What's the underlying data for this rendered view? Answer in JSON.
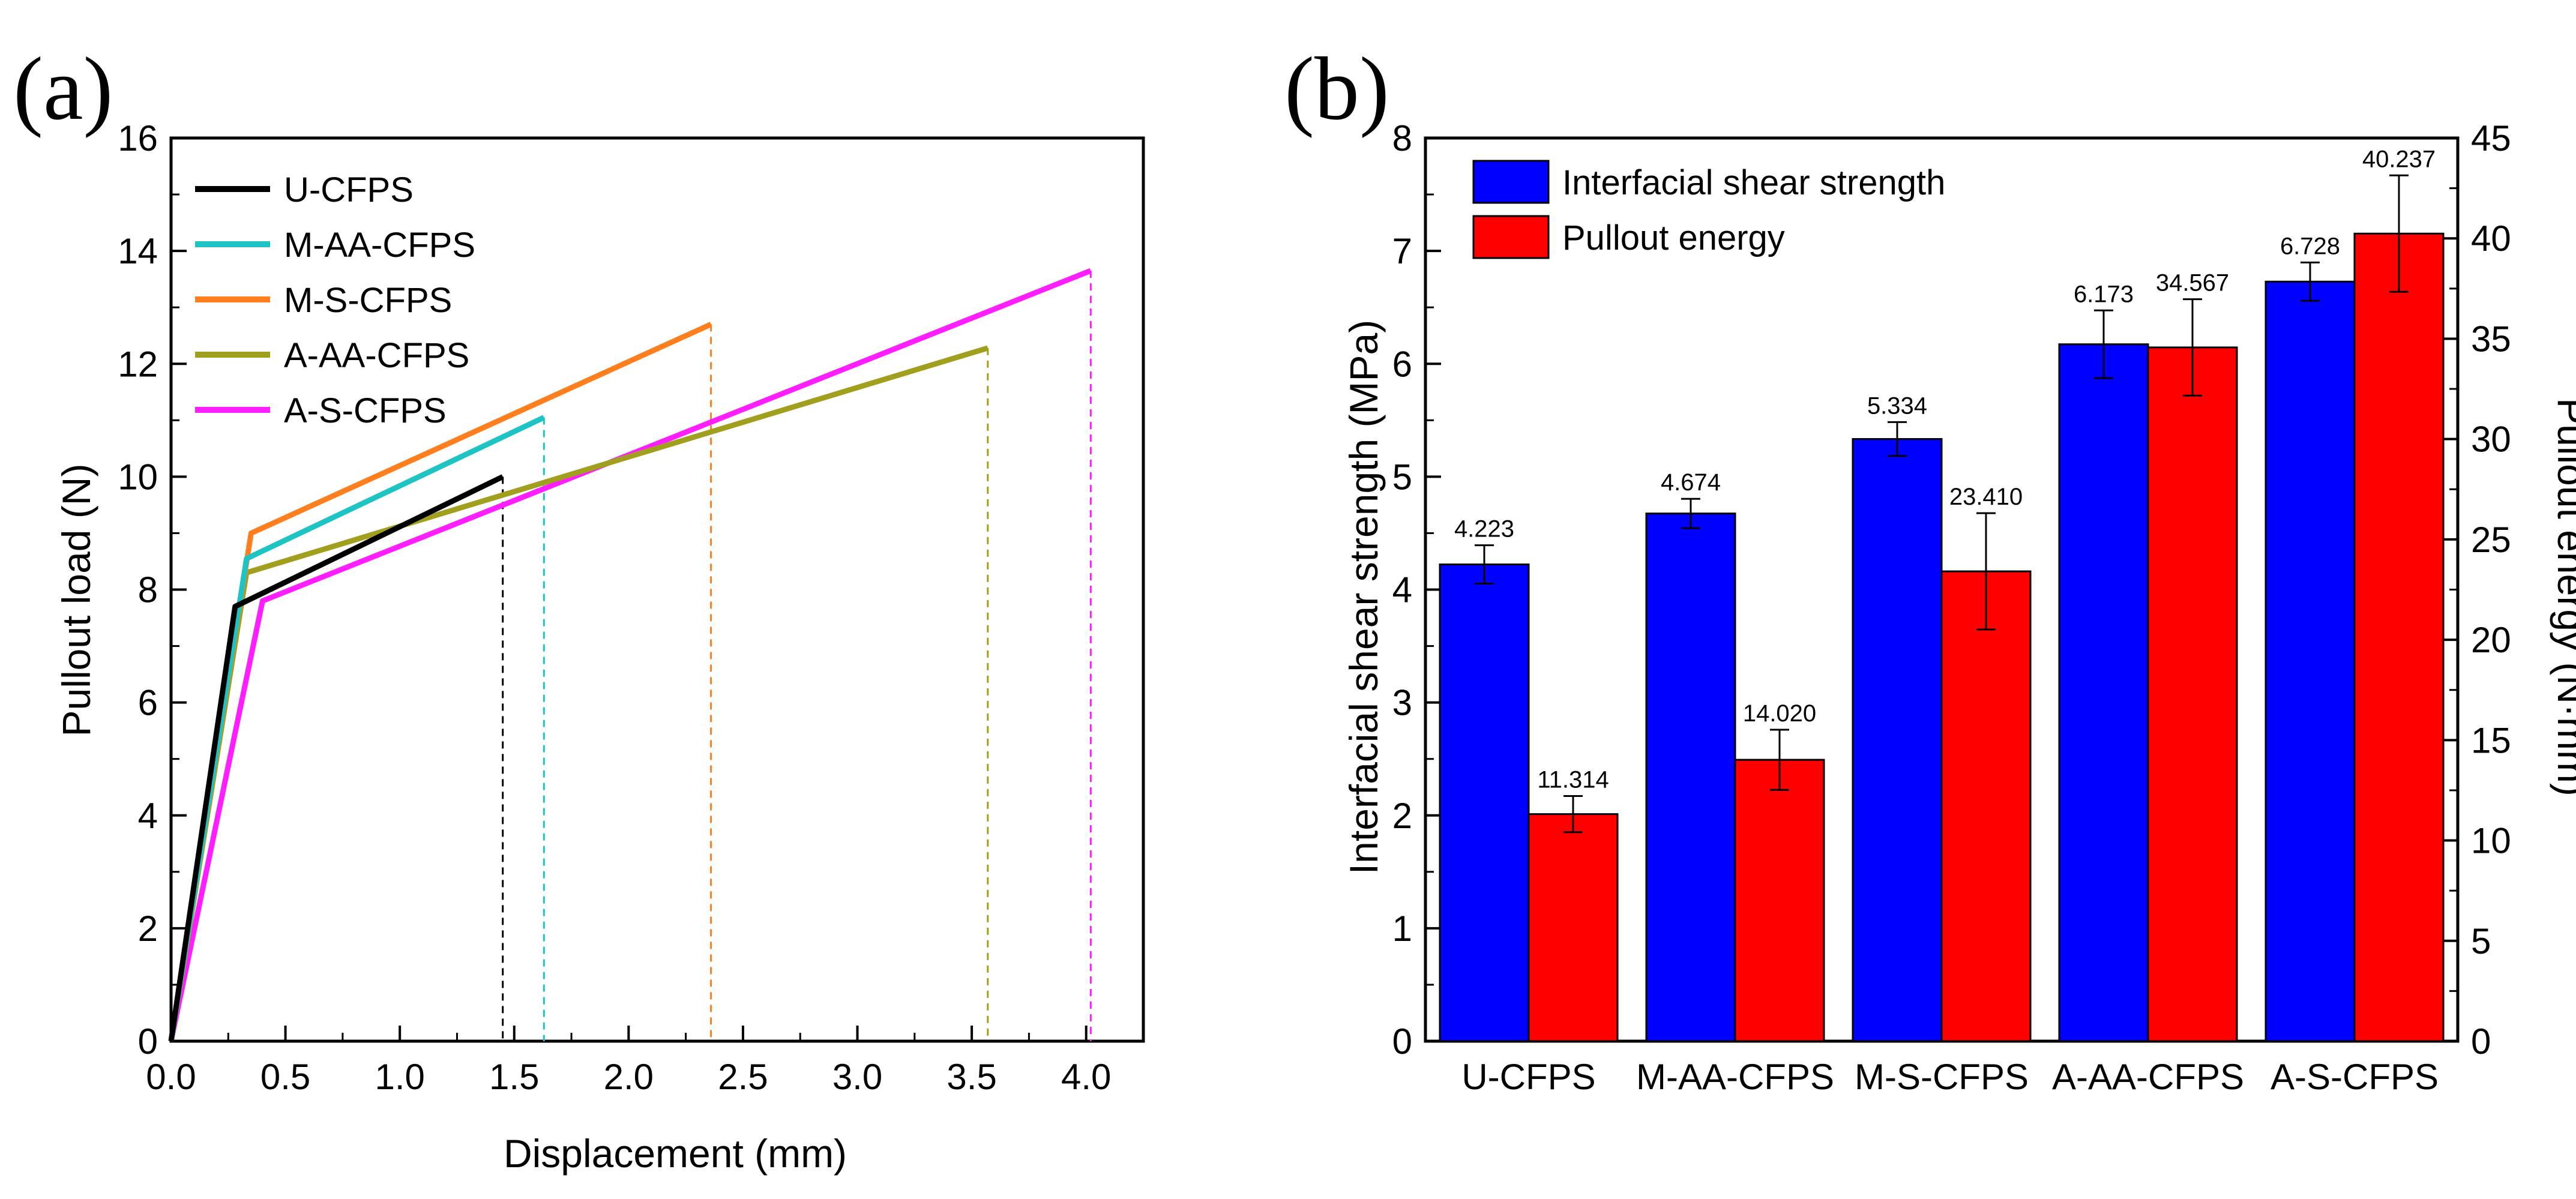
{
  "chart_data": [
    {
      "panel": "(a)",
      "type": "line",
      "xlabel": "Displacement (mm)",
      "ylabel": "Pullout load (N)",
      "xlim": [
        0.0,
        4.25
      ],
      "ylim": [
        0,
        16
      ],
      "x_ticks": [
        "0.0",
        "0.5",
        "1.0",
        "1.5",
        "2.0",
        "2.5",
        "3.0",
        "3.5",
        "4.0"
      ],
      "y_ticks": [
        "0",
        "2",
        "4",
        "6",
        "8",
        "10",
        "12",
        "14",
        "16"
      ],
      "legend_position": "top-left",
      "series": [
        {
          "name": "U-CFPS",
          "color": "#000000",
          "x": [
            0.0,
            0.28,
            1.45
          ],
          "y": [
            0,
            7.7,
            10.0
          ],
          "failure_x": 1.45
        },
        {
          "name": "M-AA-CFPS",
          "color": "#1ec4c4",
          "x": [
            0.0,
            0.33,
            1.63
          ],
          "y": [
            0,
            8.55,
            11.05
          ],
          "failure_x": 1.63
        },
        {
          "name": "M-S-CFPS",
          "color": "#ff7f1e",
          "x": [
            0.0,
            0.35,
            2.36
          ],
          "y": [
            0,
            9.0,
            12.7
          ],
          "failure_x": 2.36
        },
        {
          "name": "A-AA-CFPS",
          "color": "#a0a01e",
          "x": [
            0.0,
            0.33,
            3.57
          ],
          "y": [
            0,
            8.3,
            12.28
          ],
          "failure_x": 3.57
        },
        {
          "name": "A-S-CFPS",
          "color": "#ff1eff",
          "x": [
            0.0,
            0.4,
            4.02
          ],
          "y": [
            0,
            7.8,
            13.65
          ],
          "failure_x": 4.02
        }
      ]
    },
    {
      "panel": "(b)",
      "type": "bar",
      "categories": [
        "U-CFPS",
        "M-AA-CFPS",
        "M-S-CFPS",
        "A-AA-CFPS",
        "A-S-CFPS"
      ],
      "ylabel": "Interfacial shear strength (MPa)",
      "y2label": "Pullout energy (N·mm)",
      "ylim": [
        0,
        8
      ],
      "y2lim": [
        0,
        45
      ],
      "y_ticks": [
        "0",
        "1",
        "2",
        "3",
        "4",
        "5",
        "6",
        "7",
        "8"
      ],
      "y2_ticks": [
        "0",
        "5",
        "10",
        "15",
        "20",
        "25",
        "30",
        "35",
        "40",
        "45"
      ],
      "legend_position": "top-left",
      "series": [
        {
          "name": "Interfacial shear strength",
          "axis": "left",
          "color": "#0000ff",
          "values": [
            4.223,
            4.674,
            5.334,
            6.173,
            6.728
          ],
          "errors": [
            0.17,
            0.13,
            0.15,
            0.3,
            0.17
          ],
          "labels": [
            "4.223",
            "4.674",
            "5.334",
            "6.173",
            "6.728"
          ]
        },
        {
          "name": "Pullout energy",
          "axis": "right",
          "color": "#ff0000",
          "values": [
            11.314,
            14.02,
            23.41,
            34.567,
            40.237
          ],
          "errors": [
            0.9,
            1.5,
            2.9,
            2.4,
            2.9
          ],
          "labels": [
            "11.314",
            "14.020",
            "23.410",
            "34.567",
            "40.237"
          ]
        }
      ]
    }
  ]
}
